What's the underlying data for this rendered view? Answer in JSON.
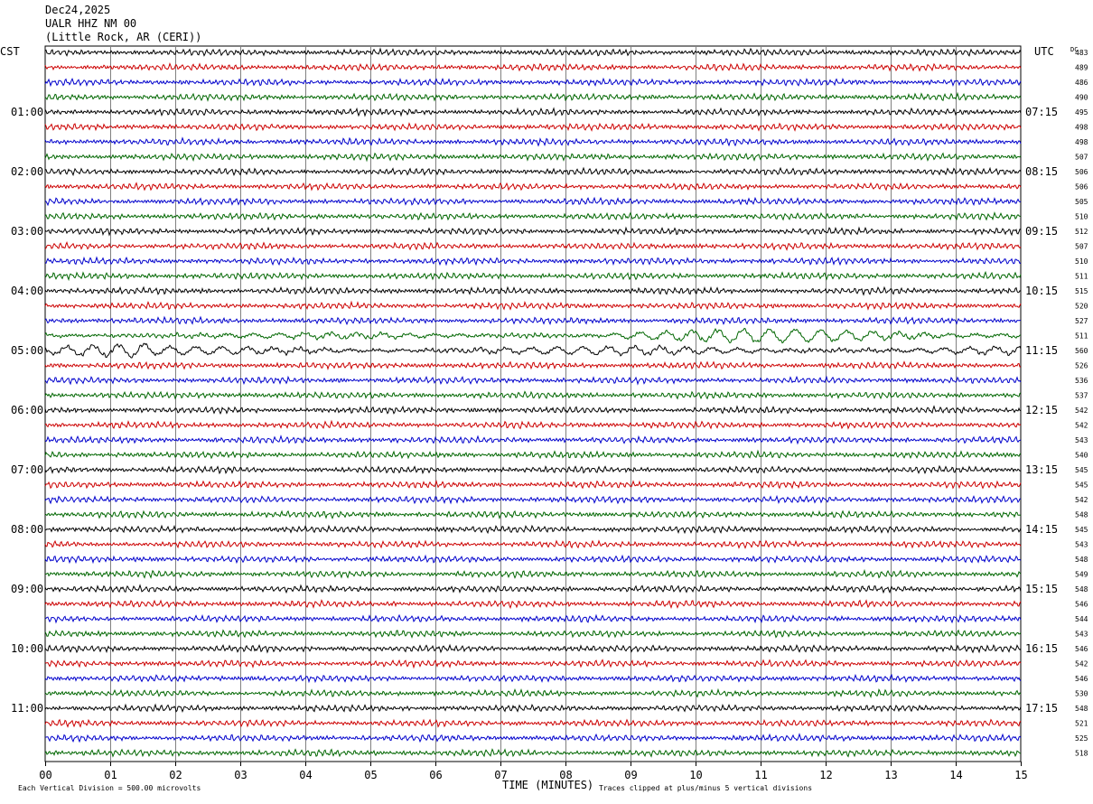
{
  "header": {
    "date": "Dec24,2025",
    "station": "UALR HHZ NM 00",
    "location": "(Little Rock, AR (CERI))"
  },
  "labels": {
    "left_timezone": "CST",
    "right_timezone": "UTC",
    "dc_label": "DC",
    "xlabel": "TIME (MINUTES)",
    "scale_note": "Each Vertical Division =  500.00 microvolts",
    "clip_note": "Traces clipped at plus/minus 5 vertical divisions"
  },
  "colors": {
    "trace_cycle": [
      "#000000",
      "#cc0000",
      "#0000cc",
      "#006600"
    ],
    "grid": "#808080",
    "background": "#ffffff"
  },
  "chart_data": {
    "type": "line",
    "title": "UALR HHZ NM 00",
    "xlabel": "TIME (MINUTES)",
    "xlim": [
      0,
      15
    ],
    "x_ticks": [
      "00",
      "01",
      "02",
      "03",
      "04",
      "05",
      "06",
      "07",
      "08",
      "09",
      "10",
      "11",
      "12",
      "13",
      "14",
      "15"
    ],
    "left_hour_labels": [
      "01:00",
      "02:00",
      "03:00",
      "04:00",
      "05:00",
      "06:00",
      "07:00",
      "08:00",
      "09:00",
      "10:00",
      "11:00"
    ],
    "right_hour_labels": [
      "07:15",
      "08:15",
      "09:15",
      "10:15",
      "11:15",
      "12:15",
      "13:15",
      "14:15",
      "15:15",
      "16:15",
      "17:15"
    ],
    "hour_label_rows": [
      4,
      8,
      12,
      16,
      20,
      24,
      28,
      32,
      36,
      40,
      44
    ],
    "trace_count": 48,
    "dc_offsets": [
      483,
      489,
      486,
      490,
      495,
      498,
      498,
      507,
      506,
      506,
      505,
      510,
      512,
      507,
      510,
      511,
      515,
      520,
      527,
      511,
      560,
      526,
      536,
      537,
      542,
      542,
      543,
      540,
      545,
      545,
      542,
      548,
      545,
      543,
      548,
      549,
      548,
      546,
      544,
      543,
      546,
      542,
      546,
      530,
      548,
      521,
      525,
      518
    ],
    "high_activity_rows": [
      19,
      20
    ],
    "clip_divisions": 5,
    "vertical_division_microvolts": 500.0
  }
}
